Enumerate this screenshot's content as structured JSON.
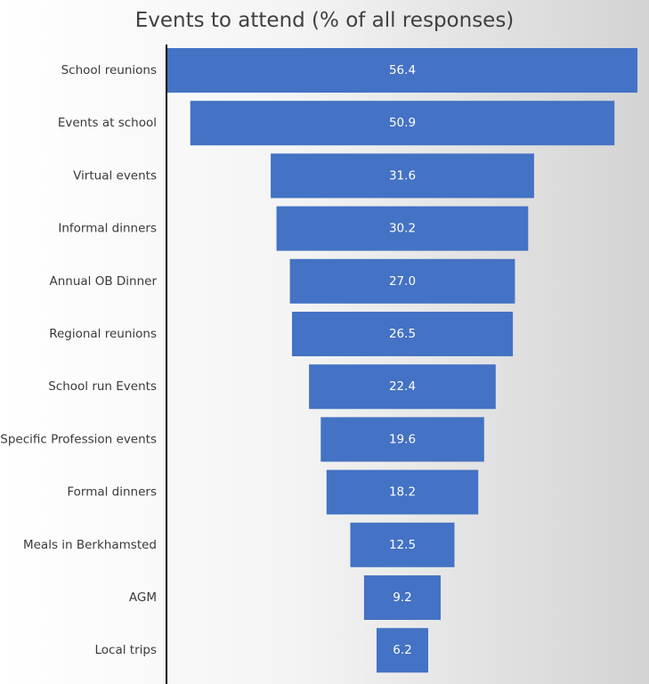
{
  "chart_data": {
    "type": "bar",
    "orientation": "horizontal-funnel",
    "title": "Events to attend (% of all responses)",
    "categories": [
      "School reunions",
      "Events at school",
      "Virtual events",
      "Informal dinners",
      "Annual OB Dinner",
      "Regional reunions",
      "School run Events",
      "Specific Profession events",
      "Formal dinners",
      "Meals in Berkhamsted",
      "AGM",
      "Local trips"
    ],
    "values": [
      56.4,
      50.9,
      31.6,
      30.2,
      27.0,
      26.5,
      22.4,
      19.6,
      18.2,
      12.5,
      9.2,
      6.2
    ],
    "value_labels": [
      "56.4",
      "50.9",
      "31.6",
      "30.2",
      "27.0",
      "26.5",
      "22.4",
      "19.6",
      "18.2",
      "12.5",
      "9.2",
      "6.2"
    ],
    "xlabel": "",
    "ylabel": "",
    "grid": false,
    "legend": "none",
    "bar_color": "#4472c4",
    "axis_color": "#000000"
  }
}
